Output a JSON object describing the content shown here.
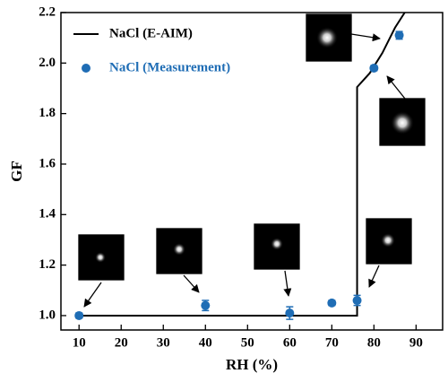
{
  "chart_data": {
    "type": "scatter",
    "x_label": "RH (%)",
    "y_label": "GF",
    "xlim": [
      5.7,
      96.3
    ],
    "ylim": [
      0.943,
      2.2
    ],
    "xticks": [
      10,
      20,
      30,
      40,
      50,
      60,
      70,
      80,
      90
    ],
    "yticks": [
      {
        "value": 1.0,
        "label": "1.0"
      },
      {
        "value": 1.2,
        "label": "1.2"
      },
      {
        "value": 1.4,
        "label": "1.4"
      },
      {
        "value": 1.6,
        "label": "1.6"
      },
      {
        "value": 1.8,
        "label": "1.8"
      },
      {
        "value": 2.0,
        "label": "2.0"
      },
      {
        "value": 2.2,
        "label": "2.2"
      }
    ],
    "series": [
      {
        "name": "NaCl (E-AIM)",
        "type": "line",
        "color": "#000000",
        "x": [
          10,
          76,
          76,
          79,
          82,
          85,
          87.3
        ],
        "values": [
          1.0,
          1.0,
          1.905,
          1.96,
          2.04,
          2.14,
          2.2
        ]
      },
      {
        "name": "NaCl (Measurement)",
        "type": "scatter",
        "color": "#1f6db5",
        "x": [
          10,
          40,
          60,
          70,
          76,
          80,
          86
        ],
        "values": [
          1.0,
          1.04,
          1.01,
          1.05,
          1.06,
          1.98,
          2.11
        ],
        "errors": [
          0.01,
          0.02,
          0.025,
          0.01,
          0.02,
          0.01,
          0.015
        ]
      }
    ]
  }
}
